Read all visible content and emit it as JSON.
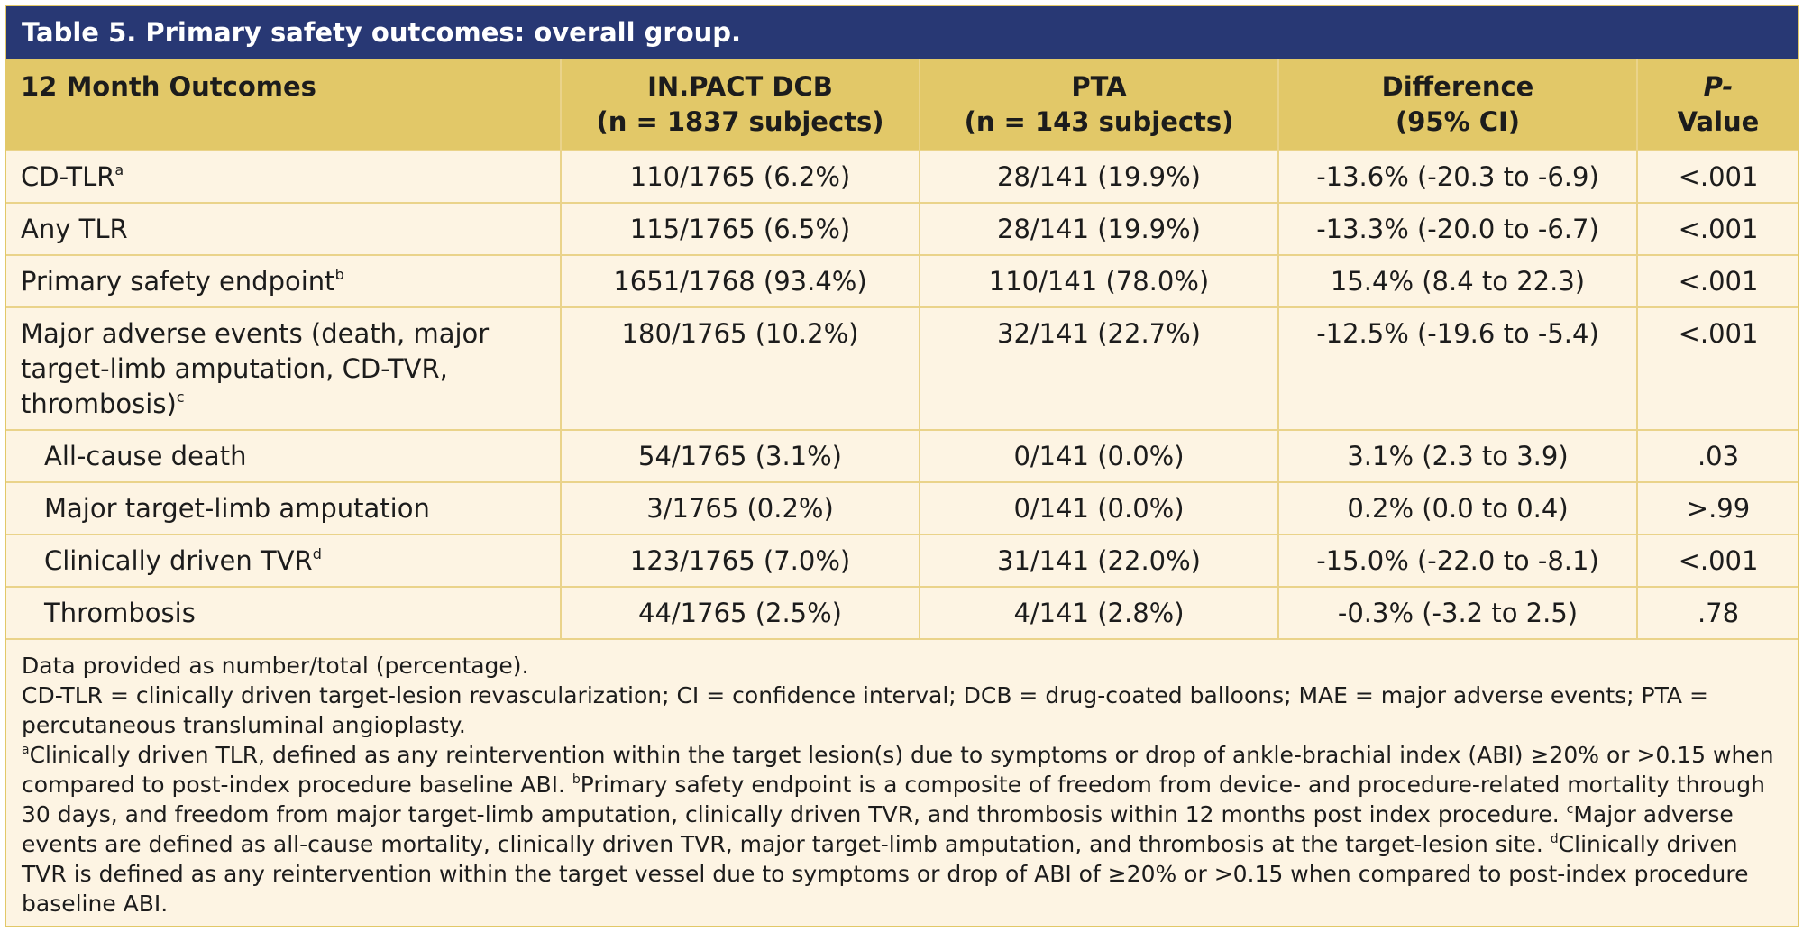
{
  "title": "Table 5. Primary safety outcomes: overall group.",
  "header": {
    "col1": "12 Month Outcomes",
    "col2_line1": "IN.PACT DCB",
    "col2_line2": "(n = 1837 subjects)",
    "col3_line1": "PTA",
    "col3_line2": "(n = 143 subjects)",
    "col4_line1": "Difference",
    "col4_line2": "(95% CI)",
    "col5_line1": "P-",
    "col5_line2": "Value"
  },
  "rows": [
    {
      "label": "CD-TLR",
      "sup": "a",
      "dcb": "110/1765 (6.2%)",
      "pta": "28/141 (19.9%)",
      "diff": "-13.6% (-20.3 to -6.9)",
      "p": "<.001"
    },
    {
      "label": "Any TLR",
      "sup": "",
      "dcb": "115/1765 (6.5%)",
      "pta": "28/141 (19.9%)",
      "diff": "-13.3% (-20.0 to -6.7)",
      "p": "<.001"
    },
    {
      "label": "Primary safety endpoint",
      "sup": "b",
      "dcb": "1651/1768 (93.4%)",
      "pta": "110/141 (78.0%)",
      "diff": "15.4% (8.4 to 22.3)",
      "p": "<.001"
    },
    {
      "label_lines": [
        "Major adverse events (death, major",
        "target-limb amputation, CD-TVR,",
        "thrombosis)"
      ],
      "sup": "c",
      "dcb": "180/1765 (10.2%)",
      "pta": "32/141 (22.7%)",
      "diff": "-12.5% (-19.6 to -5.4)",
      "p": "<.001"
    },
    {
      "label": "All-cause death",
      "sup": "",
      "dcb": "54/1765 (3.1%)",
      "pta": "0/141 (0.0%)",
      "diff": "3.1% (2.3 to 3.9)",
      "p": ".03"
    },
    {
      "label": "Major target-limb amputation",
      "sup": "",
      "dcb": "3/1765 (0.2%)",
      "pta": "0/141 (0.0%)",
      "diff": "0.2% (0.0 to 0.4)",
      "p": ">.99"
    },
    {
      "label": "Clinically driven TVR",
      "sup": "d",
      "dcb": "123/1765 (7.0%)",
      "pta": "31/141 (22.0%)",
      "diff": "-15.0% (-22.0 to -8.1)",
      "p": "<.001"
    },
    {
      "label": "Thrombosis",
      "sup": "",
      "dcb": "44/1765 (2.5%)",
      "pta": "4/141 (2.8%)",
      "diff": "-0.3% (-3.2 to 2.5)",
      "p": ".78"
    }
  ],
  "footnotes": {
    "data_note": "Data provided as number/total (percentage).",
    "abbreviations": "CD-TLR = clinically driven target-lesion revascularization; CI = confidence interval; DCB = drug-coated balloons; MAE = major adverse events; PTA = percutaneous transluminal angioplasty.",
    "a_mark": "a",
    "a_text": "Clinically driven TLR, defined as any reintervention within the target lesion(s) due to symptoms or drop of ankle-brachial index (ABI) ≥20% or >0.15 when compared to post-index procedure baseline ABI. ",
    "b_mark": "b",
    "b_text": "Primary safety endpoint is a composite of freedom from device- and procedure-related mortality through 30 days, and freedom from major target-limb amputation, clinically driven TVR, and thrombosis within 12 months post index procedure. ",
    "c_mark": "c",
    "c_text": "Major adverse events are defined as all-cause mortality, clinically driven TVR, major target-limb amputation, and thrombosis at the target-lesion site. ",
    "d_mark": "d",
    "d_text": "Clinically driven TVR is defined as any reintervention within the target vessel due to symptoms or drop of ABI of ≥20% or >0.15 when compared to post-index procedure baseline ABI."
  },
  "colors": {
    "title_bg": "#283874",
    "header_bg": "#e2c868",
    "body_bg": "#fdf4e3",
    "grid": "#ead38a"
  }
}
